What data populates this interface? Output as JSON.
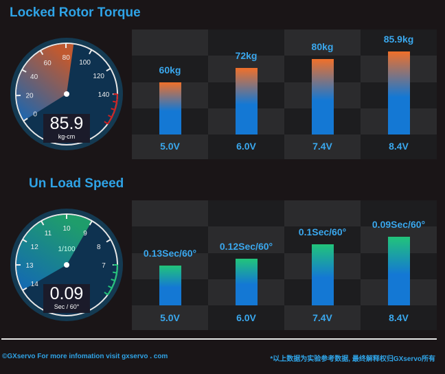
{
  "chart_data": [
    {
      "type": "bar",
      "title": "Locked Rotor Torque",
      "categories": [
        "5.0V",
        "6.0V",
        "7.4V",
        "8.4V"
      ],
      "values": [
        60,
        72,
        80,
        85.9
      ],
      "data_labels": [
        "60kg",
        "72kg",
        "80kg",
        "85.9kg"
      ],
      "unit": "kg",
      "gauge": {
        "value": "85.9",
        "unit": "kg-cm",
        "ticks": [
          "0",
          "20",
          "40",
          "60",
          "80",
          "100",
          "120",
          "140"
        ],
        "range": [
          0,
          140
        ]
      },
      "colors": {
        "bar_bottom": "#1478d4",
        "bar_top": "#f0702a"
      }
    },
    {
      "type": "bar",
      "title": "Un Load Speed",
      "categories": [
        "5.0V",
        "6.0V",
        "7.4V",
        "8.4V"
      ],
      "values": [
        0.13,
        0.12,
        0.1,
        0.09
      ],
      "data_labels": [
        "0.13Sec/60°",
        "0.12Sec/60°",
        "0.1Sec/60°",
        "0.09Sec/60°"
      ],
      "unit": "Sec/60°",
      "gauge": {
        "value": "0.09",
        "unit": "Sec / 60°",
        "scale_label": "1/100",
        "ticks": [
          "14",
          "13",
          "12",
          "11",
          "10",
          "9",
          "8",
          "7"
        ],
        "range": [
          14,
          7
        ]
      },
      "colors": {
        "bar_bottom": "#1478d4",
        "bar_top": "#22c47a"
      }
    }
  ],
  "footer": {
    "left": "©GXservo For more infomation visit gxservo . com",
    "right": "*以上数据为实验参考数据, 最终解释权归GXservo所有"
  }
}
